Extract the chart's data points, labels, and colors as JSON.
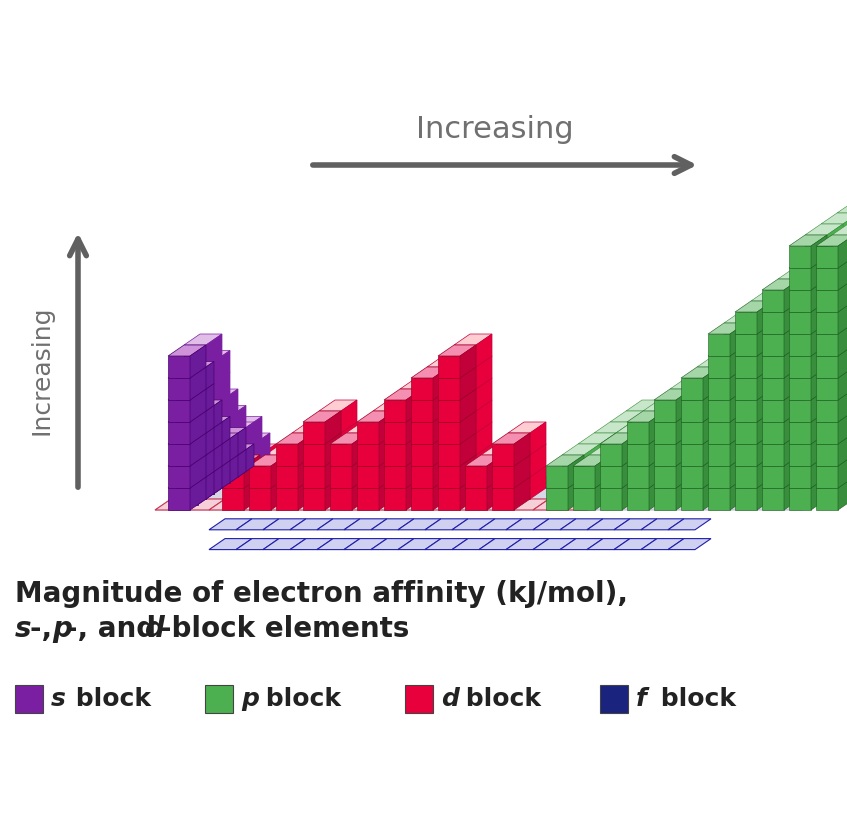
{
  "s_block_color_dark": "#7B1FA2",
  "s_block_color_light": "#CE93D8",
  "s_block_color_side": "#9C27B0",
  "d_block_color_dark": "#E8003C",
  "d_block_color_light": "#F48FB1",
  "d_block_color_side": "#C2003A",
  "p_block_color_dark": "#4CAF50",
  "p_block_color_light": "#A5D6A7",
  "p_block_color_side": "#388E3C",
  "f_block_color": "#1A237E",
  "background_color": "#ffffff",
  "arrow_color": "#606060",
  "text_color": "#222222",
  "grid_fill": "#D8D8E4",
  "grid_edge_gray": "#B0B0C8",
  "grid_edge_red": "#CC3355",
  "grid_edge_blue": "#2020AA",
  "grid_fill_blue": "#D0D0F0",
  "s_heights": [
    7.0,
    5.5,
    4.0,
    3.0,
    2.2,
    1.5,
    0.8,
    0.4
  ],
  "d_heights": [
    1.8,
    2.5,
    3.2,
    3.6,
    2.8,
    4.2,
    4.8,
    6.2,
    7.0,
    2.5,
    2.8
  ],
  "p_heights": [
    1.5,
    2.2,
    3.0,
    4.0,
    5.0,
    6.2,
    7.5,
    8.8,
    10.2,
    11.5,
    12.5
  ]
}
